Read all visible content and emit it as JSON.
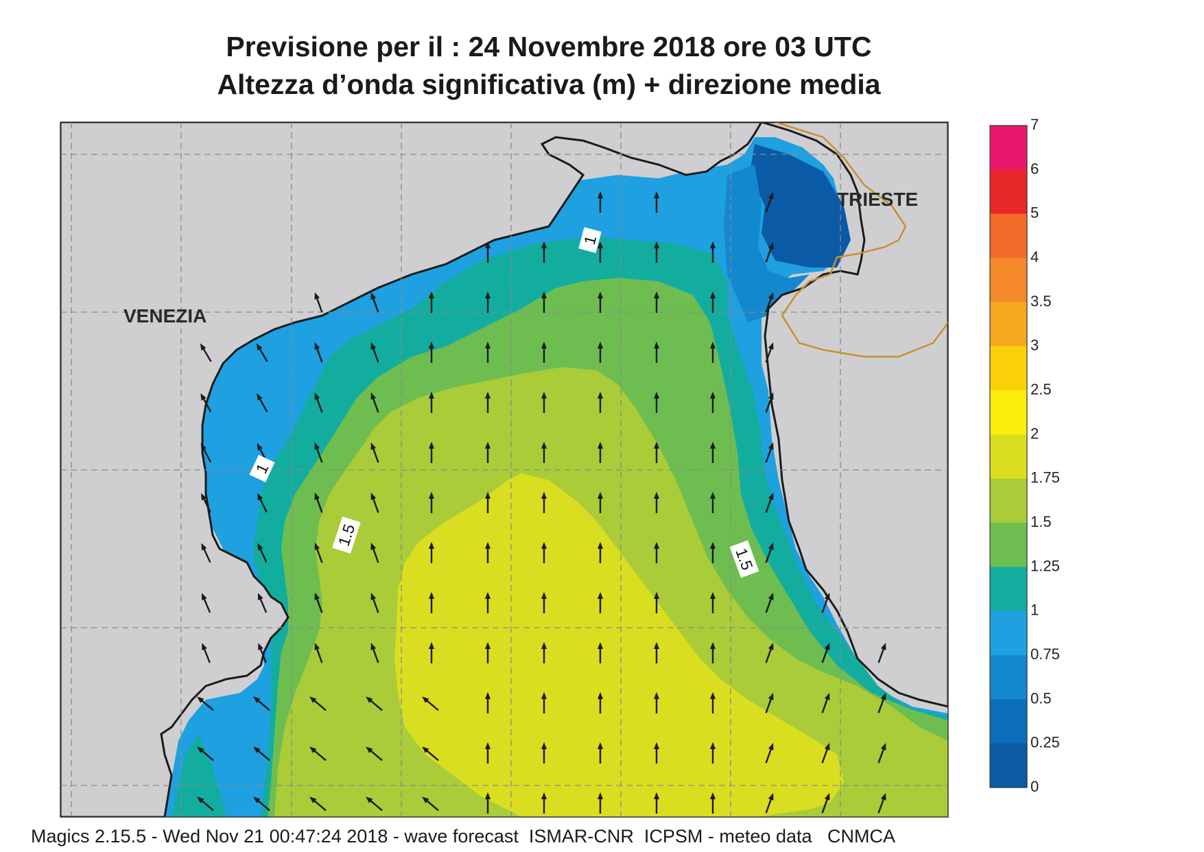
{
  "title": {
    "line1": "Previsione per il  :  24 Novembre  2018   ore 03 UTC",
    "line2": "Altezza d’onda significativa (m) + direzione media"
  },
  "labels": {
    "venezia": "VENEZIA",
    "trieste": "TRIESTE",
    "contour_1_north": "1",
    "contour_1_west": "1",
    "contour_15_west": "1.5",
    "contour_15_east": "1.5"
  },
  "legend": {
    "ticks": [
      "7",
      "6",
      "5",
      "4",
      "3.5",
      "3",
      "2.5",
      "2",
      "1.75",
      "1.5",
      "1.25",
      "1",
      "0.75",
      "0.5",
      "0.25",
      "0"
    ],
    "colors": [
      "#e8196c",
      "#e82828",
      "#f26b2a",
      "#f5882a",
      "#f7a81f",
      "#fbd20a",
      "#fbee0a",
      "#dade20",
      "#a9cc38",
      "#6ebd50",
      "#12ad9f",
      "#1fa0e0",
      "#1488cf",
      "#0a6fb8",
      "#0a5aa6"
    ]
  },
  "colors": {
    "land": "#cfcfd2",
    "sea_lt_025": "#0a5aa6",
    "sea_050_075": "#1488cf",
    "sea_075_1": "#1fa0e0",
    "sea_1_125": "#12ad9f",
    "sea_125_15": "#6ebd50",
    "sea_15_175": "#a9cc38",
    "sea_175_2": "#dade20",
    "coast": "#1a1a1a",
    "border": "#c8912e"
  },
  "footer": "Magics 2.15.5 - Wed Nov 21 00:47:24 2018 - wave forecast  ISMAR-CNR  ICPSM - meteo data   CNMCA"
}
